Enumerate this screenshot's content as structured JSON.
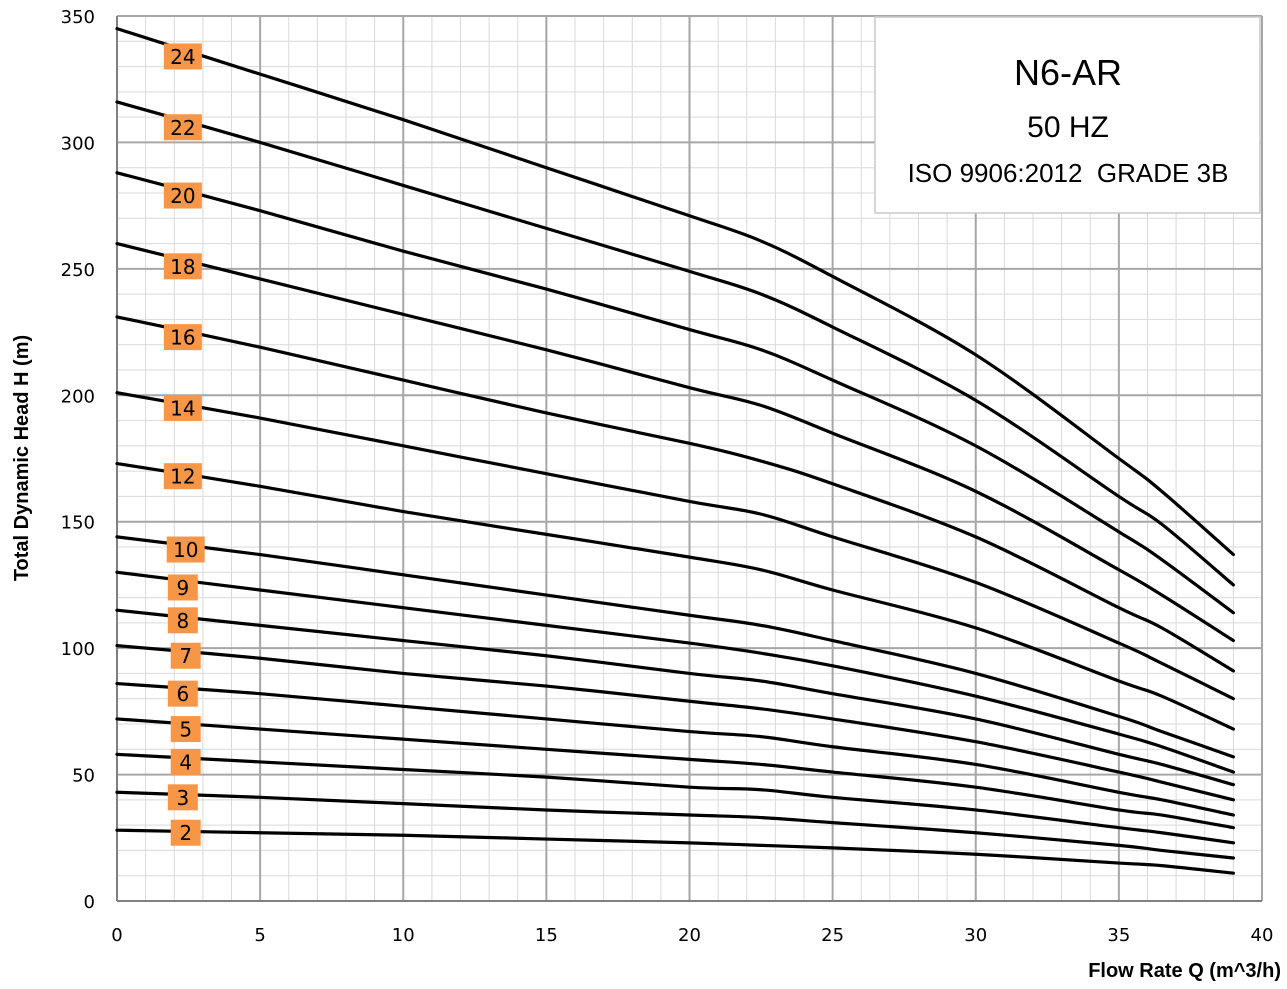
{
  "chart_data": {
    "type": "line",
    "title": "N6-AR",
    "subtitle": [
      "50 HZ",
      "ISO 9906:2012  GRADE 3B"
    ],
    "xlabel": "Flow Rate Q (m^3/h)",
    "ylabel": "Total Dynamic Head  H (m)",
    "xlim": [
      0,
      40
    ],
    "ylim": [
      0,
      350
    ],
    "x_ticks": [
      0,
      5,
      10,
      15,
      20,
      25,
      30,
      35,
      40
    ],
    "y_ticks": [
      0,
      50,
      100,
      150,
      200,
      250,
      300,
      350
    ],
    "x_tick_labels": [
      "0",
      "5",
      "10",
      "15",
      "20",
      "25",
      "30",
      "35",
      "40"
    ],
    "y_tick_labels": [
      "0",
      "50",
      "100",
      "150",
      "200",
      "250",
      "300",
      "350"
    ],
    "grid": true,
    "minor_grid": true,
    "legend": "none",
    "line_color": "#000000",
    "label_box_color": "#F79646",
    "x": [
      0,
      5,
      10,
      15,
      20,
      22.5,
      25,
      30,
      35,
      36.5,
      39
    ],
    "series": [
      {
        "name": "24",
        "label_at": {
          "x": 2.3,
          "y": 334
        },
        "values": [
          345,
          327,
          309,
          290,
          271,
          261,
          247,
          216,
          175,
          162,
          137
        ]
      },
      {
        "name": "22",
        "label_at": {
          "x": 2.3,
          "y": 306
        },
        "values": [
          316,
          300,
          283,
          266,
          249,
          240,
          227,
          198,
          160,
          149,
          125
        ]
      },
      {
        "name": "20",
        "label_at": {
          "x": 2.3,
          "y": 279
        },
        "values": [
          288,
          273,
          257,
          242,
          226,
          218,
          206,
          180,
          146,
          135,
          114
        ]
      },
      {
        "name": "18",
        "label_at": {
          "x": 2.3,
          "y": 251
        },
        "values": [
          260,
          246,
          232,
          218,
          203,
          196,
          185,
          162,
          131,
          121,
          103
        ]
      },
      {
        "name": "16",
        "label_at": {
          "x": 2.3,
          "y": 223
        },
        "values": [
          231,
          219,
          206,
          193,
          181,
          174,
          165,
          144,
          116,
          108,
          91
        ]
      },
      {
        "name": "14",
        "label_at": {
          "x": 2.3,
          "y": 195
        },
        "values": [
          201,
          191,
          180,
          169,
          158,
          153,
          144,
          126,
          102,
          94,
          80
        ]
      },
      {
        "name": "12",
        "label_at": {
          "x": 2.3,
          "y": 168
        },
        "values": [
          173,
          164,
          154,
          145,
          136,
          131,
          123,
          108,
          87,
          81,
          68
        ]
      },
      {
        "name": "10",
        "label_at": {
          "x": 2.4,
          "y": 139
        },
        "values": [
          144,
          137,
          129,
          121,
          113,
          109,
          103,
          90,
          73,
          67,
          57
        ]
      },
      {
        "name": "9",
        "label_at": {
          "x": 2.3,
          "y": 124
        },
        "values": [
          130,
          123,
          116,
          109,
          102,
          98,
          93,
          81,
          66,
          61,
          51
        ]
      },
      {
        "name": "8",
        "label_at": {
          "x": 2.3,
          "y": 111
        },
        "values": [
          115,
          109,
          103,
          97,
          90,
          87,
          82,
          72,
          58,
          54,
          46
        ]
      },
      {
        "name": "7",
        "label_at": {
          "x": 2.4,
          "y": 97
        },
        "values": [
          101,
          96,
          90,
          85,
          79,
          76,
          72,
          63,
          51,
          47,
          40
        ]
      },
      {
        "name": "6",
        "label_at": {
          "x": 2.3,
          "y": 82
        },
        "values": [
          86,
          82,
          77,
          72,
          67,
          65,
          61,
          54,
          43,
          40,
          34
        ]
      },
      {
        "name": "5",
        "label_at": {
          "x": 2.4,
          "y": 68
        },
        "values": [
          72,
          68,
          64,
          60,
          56,
          54,
          51,
          45,
          36,
          34,
          29
        ]
      },
      {
        "name": "4",
        "label_at": {
          "x": 2.4,
          "y": 55
        },
        "values": [
          58,
          55,
          52,
          49,
          45,
          44,
          41,
          36,
          29,
          27,
          23
        ]
      },
      {
        "name": "3",
        "label_at": {
          "x": 2.3,
          "y": 41
        },
        "values": [
          43,
          41,
          38.5,
          36,
          34,
          33,
          31,
          27,
          22,
          20,
          17
        ]
      },
      {
        "name": "2",
        "label_at": {
          "x": 2.4,
          "y": 27
        },
        "values": [
          28,
          27,
          26,
          24.5,
          23,
          22,
          21,
          18.5,
          15,
          14,
          11
        ]
      }
    ]
  }
}
